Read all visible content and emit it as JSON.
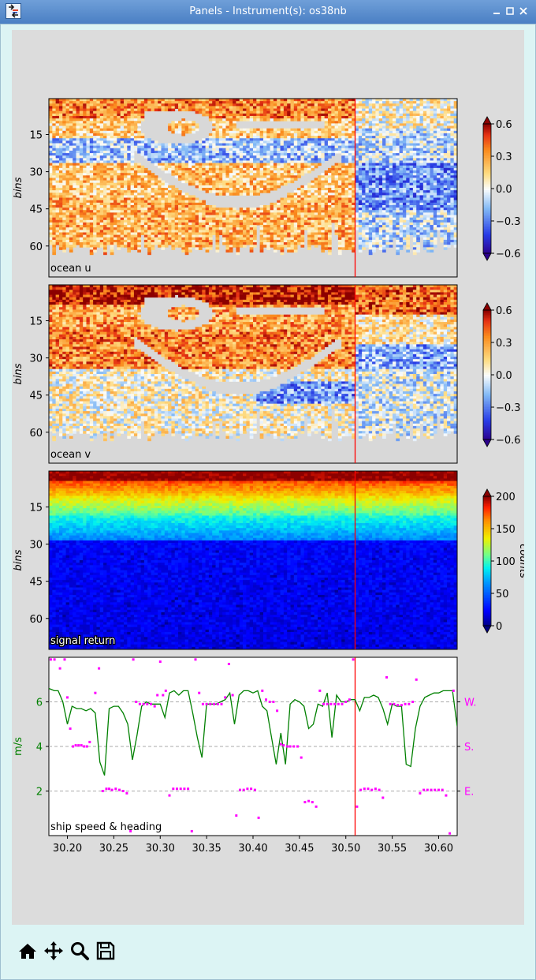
{
  "window": {
    "title": "Panels - Instrument(s): os38nb",
    "icons": [
      "app-icon",
      "minimize-icon",
      "maximize-icon",
      "close-icon"
    ]
  },
  "toolbar": {
    "tools": [
      {
        "name": "home-icon"
      },
      {
        "name": "pan-icon"
      },
      {
        "name": "zoom-icon"
      },
      {
        "name": "save-icon"
      }
    ]
  },
  "colors": {
    "speed_line": "#008000",
    "heading_dots": "#ff00ff",
    "cursor_line": "#ff0000",
    "nodata": "#d8d8d8"
  },
  "chart_data": [
    {
      "type": "heatmap",
      "label": "ocean u",
      "ylabel": "bins",
      "yticks": [
        15,
        30,
        45,
        60
      ],
      "ylim": [
        72,
        1
      ],
      "colormap": "blue-white-red",
      "colorbar": {
        "ticks": [
          "0.6",
          "0.3",
          "0.0",
          "−0.3",
          "−0.6"
        ],
        "range": [
          -0.6,
          0.6
        ]
      },
      "xlim": [
        30.18,
        30.62
      ],
      "cursor_x": 30.51
    },
    {
      "type": "heatmap",
      "label": "ocean v",
      "ylabel": "bins",
      "yticks": [
        15,
        30,
        45,
        60
      ],
      "ylim": [
        72,
        1
      ],
      "colormap": "blue-white-red",
      "colorbar": {
        "ticks": [
          "0.6",
          "0.3",
          "0.0",
          "−0.3",
          "−0.6"
        ],
        "range": [
          -0.6,
          0.6
        ]
      },
      "xlim": [
        30.18,
        30.62
      ],
      "cursor_x": 30.51
    },
    {
      "type": "heatmap",
      "label": "signal return",
      "ylabel": "bins",
      "yticks": [
        15,
        30,
        45,
        60
      ],
      "ylim": [
        72,
        1
      ],
      "colormap": "jet",
      "colorbar": {
        "ticks": [
          "200",
          "150",
          "100",
          "50",
          "0"
        ],
        "range": [
          0,
          200
        ],
        "label": "counts"
      },
      "xlim": [
        30.18,
        30.62
      ],
      "cursor_x": 30.51
    },
    {
      "type": "line",
      "label": "ship speed & heading",
      "ylabel": "m/s",
      "yticks": [
        2,
        4,
        6
      ],
      "ylim": [
        0.0,
        8.0
      ],
      "xlim": [
        30.18,
        30.62
      ],
      "xticks": [
        "30.20",
        "30.25",
        "30.30",
        "30.35",
        "30.40",
        "30.45",
        "30.50",
        "30.55",
        "30.60"
      ],
      "xtick_values": [
        30.2,
        30.25,
        30.3,
        30.35,
        30.4,
        30.45,
        30.5,
        30.55,
        30.6
      ],
      "right_ticks": [
        {
          "label": "W.",
          "y": 6
        },
        {
          "label": "S.",
          "y": 4
        },
        {
          "label": "E.",
          "y": 2
        }
      ],
      "cursor_x": 30.51,
      "speed": {
        "x": [
          30.18,
          30.186,
          30.19,
          30.195,
          30.2,
          30.205,
          30.21,
          30.215,
          30.22,
          30.225,
          30.23,
          30.235,
          30.24,
          30.245,
          30.25,
          30.255,
          30.26,
          30.265,
          30.27,
          30.275,
          30.28,
          30.285,
          30.29,
          30.295,
          30.3,
          30.305,
          30.31,
          30.315,
          30.32,
          30.325,
          30.33,
          30.335,
          30.34,
          30.345,
          30.35,
          30.355,
          30.36,
          30.365,
          30.37,
          30.375,
          30.38,
          30.385,
          30.39,
          30.395,
          30.4,
          30.405,
          30.41,
          30.415,
          30.42,
          30.425,
          30.43,
          30.435,
          30.44,
          30.445,
          30.45,
          30.455,
          30.46,
          30.465,
          30.47,
          30.475,
          30.48,
          30.485,
          30.49,
          30.495,
          30.5,
          30.505,
          30.51,
          30.515,
          30.52,
          30.525,
          30.53,
          30.535,
          30.54,
          30.545,
          30.55,
          30.555,
          30.56,
          30.565,
          30.57,
          30.575,
          30.58,
          30.585,
          30.59,
          30.595,
          30.6,
          30.605,
          30.61,
          30.615,
          30.62
        ],
        "y": [
          6.6,
          6.5,
          6.5,
          6.0,
          5.0,
          5.8,
          5.7,
          5.7,
          5.6,
          5.7,
          5.5,
          3.3,
          2.7,
          5.7,
          5.8,
          5.8,
          5.5,
          5.0,
          3.4,
          4.5,
          5.8,
          6.0,
          5.9,
          5.9,
          5.9,
          5.3,
          6.4,
          6.5,
          6.3,
          6.5,
          6.5,
          5.5,
          4.4,
          3.5,
          5.9,
          5.9,
          5.9,
          6.0,
          6.1,
          6.4,
          5.0,
          6.3,
          6.5,
          6.5,
          6.4,
          6.5,
          5.8,
          5.6,
          4.4,
          3.2,
          4.6,
          3.2,
          5.9,
          6.1,
          6.0,
          5.8,
          4.8,
          5.0,
          5.9,
          5.8,
          6.4,
          4.4,
          6.3,
          6.0,
          6.0,
          6.1,
          6.1,
          5.6,
          6.2,
          6.2,
          6.3,
          6.2,
          5.7,
          5.0,
          5.9,
          5.8,
          5.8,
          3.2,
          3.1,
          4.8,
          5.8,
          6.2,
          6.3,
          6.4,
          6.4,
          6.5,
          6.5,
          6.5,
          4.9
        ]
      },
      "heading": {
        "x": [
          30.182,
          30.186,
          30.192,
          30.197,
          30.2,
          30.203,
          30.206,
          30.209,
          30.212,
          30.215,
          30.218,
          30.221,
          30.224,
          30.23,
          30.234,
          30.238,
          30.242,
          30.245,
          30.248,
          30.252,
          30.256,
          30.26,
          30.264,
          30.268,
          30.271,
          30.274,
          30.278,
          30.282,
          30.286,
          30.29,
          30.294,
          30.297,
          30.3,
          30.303,
          30.306,
          30.31,
          30.314,
          30.318,
          30.322,
          30.326,
          30.33,
          30.334,
          30.338,
          30.342,
          30.346,
          30.35,
          30.354,
          30.358,
          30.362,
          30.366,
          30.37,
          30.374,
          30.378,
          30.382,
          30.386,
          30.39,
          30.394,
          30.398,
          30.402,
          30.406,
          30.41,
          30.414,
          30.418,
          30.422,
          30.426,
          30.43,
          30.433,
          30.437,
          30.44,
          30.444,
          30.448,
          30.452,
          30.456,
          30.46,
          30.464,
          30.468,
          30.472,
          30.476,
          30.48,
          30.484,
          30.488,
          30.492,
          30.496,
          30.5,
          30.504,
          30.508,
          30.512,
          30.516,
          30.52,
          30.524,
          30.528,
          30.532,
          30.536,
          30.54,
          30.544,
          30.548,
          30.552,
          30.556,
          30.56,
          30.564,
          30.568,
          30.572,
          30.576,
          30.58,
          30.584,
          30.588,
          30.592,
          30.596,
          30.6,
          30.604,
          30.608,
          30.612,
          30.616
        ],
        "y": [
          7.9,
          7.9,
          7.5,
          7.9,
          6.2,
          4.8,
          4.0,
          4.05,
          4.05,
          4.05,
          4.0,
          4.0,
          4.2,
          6.4,
          7.5,
          2.0,
          2.1,
          2.1,
          2.05,
          2.1,
          2.05,
          2.0,
          1.9,
          0.2,
          7.9,
          6.0,
          5.9,
          5.9,
          5.9,
          5.9,
          5.8,
          6.3,
          7.8,
          6.3,
          6.5,
          1.8,
          2.1,
          2.1,
          2.1,
          2.1,
          2.1,
          0.2,
          7.9,
          6.4,
          5.9,
          5.9,
          5.9,
          5.9,
          5.9,
          5.9,
          6.2,
          7.7,
          6.3,
          0.9,
          2.05,
          2.05,
          2.1,
          2.1,
          2.05,
          0.8,
          6.5,
          6.1,
          6.0,
          6.0,
          5.6,
          4.1,
          4.05,
          4.0,
          4.0,
          4.0,
          4.0,
          3.5,
          1.5,
          1.55,
          1.5,
          1.3,
          6.5,
          5.9,
          5.9,
          5.9,
          5.9,
          5.9,
          5.9,
          6.0,
          6.1,
          7.9,
          1.3,
          2.05,
          2.1,
          2.1,
          2.05,
          2.1,
          2.05,
          1.7,
          7.1,
          5.9,
          5.9,
          5.85,
          5.85,
          5.9,
          5.9,
          6.0,
          7.0,
          1.9,
          2.05,
          2.05,
          2.05,
          2.05,
          2.05,
          2.05,
          1.8,
          0.1,
          6.5
        ]
      }
    }
  ]
}
